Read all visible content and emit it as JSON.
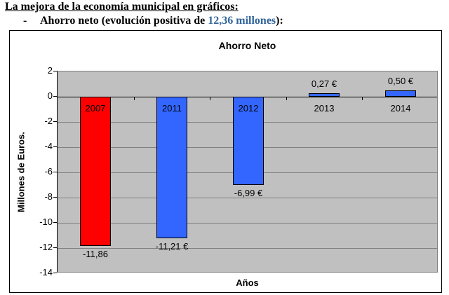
{
  "document": {
    "heading": "La mejora de la economía municipal en gráficos:",
    "list_dash": "-",
    "subtitle_prefix": "Ahorro neto (evolución positiva de ",
    "subtitle_highlight": "12,36 millones",
    "subtitle_suffix": "):",
    "highlight_color": "#31659c"
  },
  "chart_data": {
    "type": "bar",
    "title": "Ahorro Neto",
    "xlabel": "Años",
    "ylabel": "Millones de Euros.",
    "categories": [
      "2007",
      "2011",
      "2012",
      "2013",
      "2014"
    ],
    "values": [
      -11.86,
      -11.21,
      -6.99,
      0.27,
      0.5
    ],
    "value_labels": [
      "-11,86",
      "-11,21 €",
      "-6,99 €",
      "0,27 €",
      "0,50 €"
    ],
    "bar_colors": [
      "#ff0000",
      "#3366ff",
      "#3366ff",
      "#3366ff",
      "#3366ff"
    ],
    "ylim": [
      -14,
      2
    ],
    "yticks": [
      2,
      0,
      -2,
      -4,
      -6,
      -8,
      -10,
      -12,
      -14
    ],
    "grid": true,
    "legend": "none",
    "plot_background": "#c0c0c0",
    "gridline_color": "#808080",
    "bar_border_color": "#000000"
  }
}
